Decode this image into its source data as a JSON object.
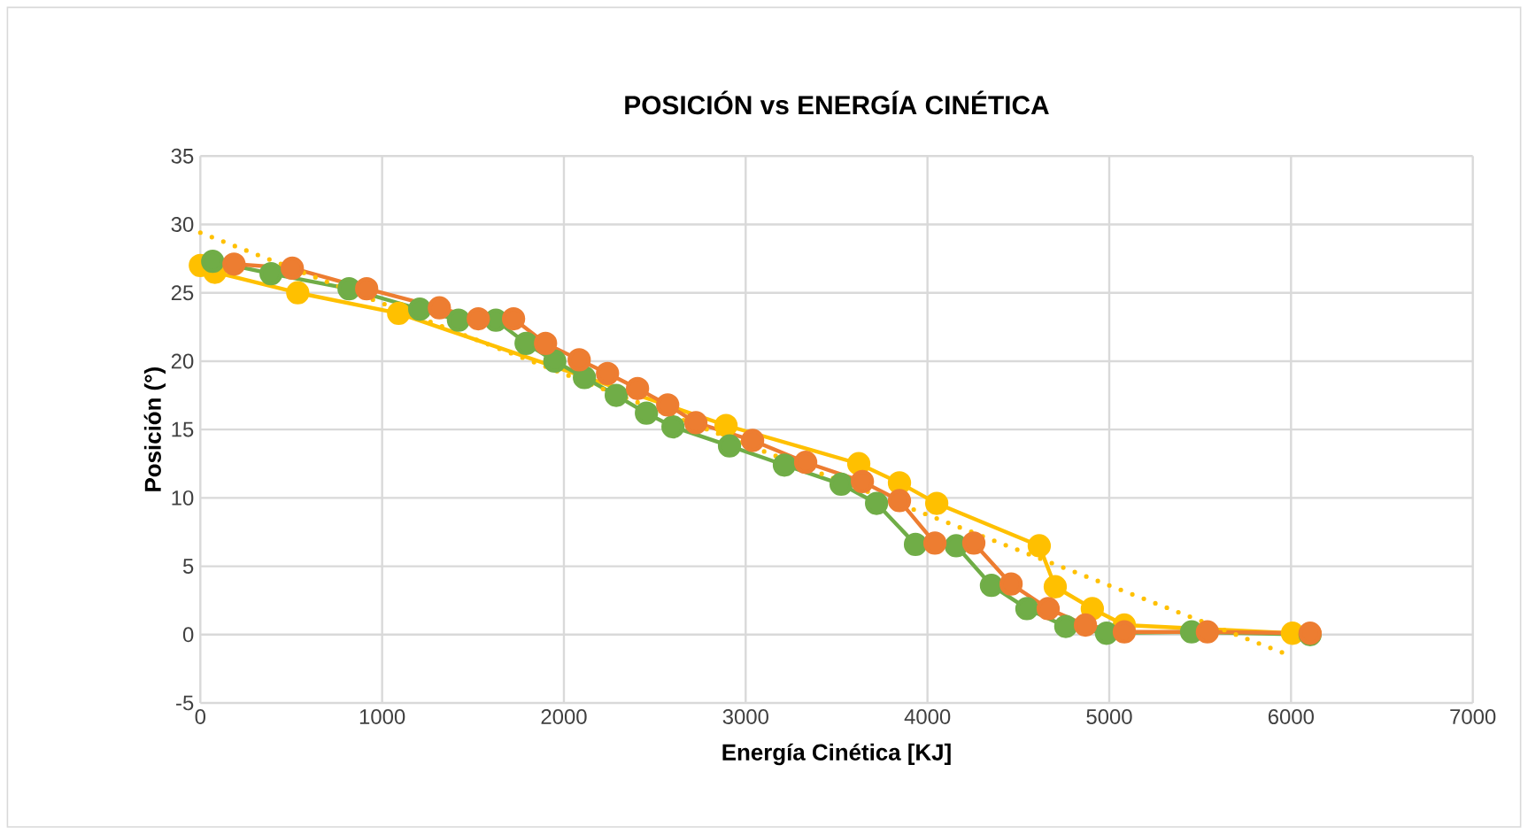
{
  "chart_data": {
    "type": "line",
    "title": "POSICIÓN    vs  ENERGÍA CINÉTICA",
    "xlabel": "Energía Cinética [KJ]",
    "ylabel": "Posición (°)",
    "xlim": [
      0,
      7000
    ],
    "xticks": [
      0,
      1000,
      2000,
      3000,
      4000,
      5000,
      6000,
      7000
    ],
    "ylim": [
      -5,
      35
    ],
    "yticks": [
      -5,
      0,
      5,
      10,
      15,
      20,
      25,
      30,
      35
    ],
    "grid": true,
    "legend": false,
    "marker": "circle",
    "line_style": "solid",
    "series": [
      {
        "color": "#ffc000",
        "x": [
          0,
          80,
          536,
          1091,
          2892,
          3622,
          3846,
          4051,
          4615,
          4703,
          4907,
          5083,
          6008
        ],
        "values": [
          27.0,
          26.5,
          25.0,
          23.5,
          15.3,
          12.5,
          11.1,
          9.6,
          6.5,
          3.5,
          1.9,
          0.7,
          0.1
        ]
      },
      {
        "color": "#70ad47",
        "x": [
          68,
          389,
          818,
          1207,
          1420,
          1626,
          1792,
          1950,
          2113,
          2288,
          2454,
          2600,
          2911,
          3213,
          3525,
          3720,
          3934,
          4158,
          4352,
          4547,
          4761,
          4985,
          5453,
          6105
        ],
        "values": [
          27.3,
          26.4,
          25.3,
          23.8,
          23.0,
          23.0,
          21.3,
          20.0,
          18.8,
          17.5,
          16.2,
          15.2,
          13.8,
          12.4,
          11.0,
          9.6,
          6.6,
          6.5,
          3.6,
          1.9,
          0.6,
          0.1,
          0.2,
          0.0
        ]
      },
      {
        "color": "#ed7d31",
        "x": [
          185,
          506,
          915,
          1315,
          1529,
          1723,
          1899,
          2084,
          2240,
          2405,
          2571,
          2726,
          3038,
          3330,
          3642,
          3846,
          4041,
          4255,
          4460,
          4664,
          4869,
          5083,
          5540,
          6105
        ],
        "values": [
          27.1,
          26.8,
          25.3,
          23.9,
          23.1,
          23.1,
          21.3,
          20.1,
          19.1,
          18.0,
          16.8,
          15.5,
          14.2,
          12.6,
          11.2,
          9.8,
          6.7,
          6.7,
          3.7,
          1.9,
          0.7,
          0.2,
          0.2,
          0.1
        ]
      },
      {
        "type": "line",
        "color": "#ffc000",
        "marker": "none",
        "line_style": "dotted",
        "x": [
          0,
          5950
        ],
        "values": [
          29.4,
          -1.3
        ]
      }
    ]
  }
}
